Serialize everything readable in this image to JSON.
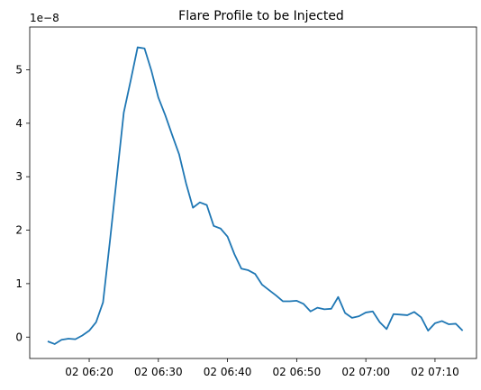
{
  "chart_data": {
    "type": "line",
    "title": "Flare Profile to be Injected",
    "xlabel": "",
    "ylabel": "",
    "y_offset_label": "1e−8",
    "x_start_time": "06:14",
    "x_step_minutes": 1,
    "xlim_minutes_after_06_00": [
      12.4,
      16.4
    ],
    "x_tick_labels": [
      "02 06:20",
      "02 06:30",
      "02 06:40",
      "02 06:50",
      "02 07:00",
      "02 07:10"
    ],
    "y_tick_labels": [
      "0",
      "1",
      "2",
      "3",
      "4",
      "5"
    ],
    "ylim": [
      -0.4,
      5.8
    ],
    "grid": false,
    "series": [
      {
        "color": "#1f77b4",
        "values": [
          -0.08,
          -0.13,
          -0.05,
          -0.03,
          -0.04,
          0.03,
          0.12,
          0.28,
          0.65,
          1.8,
          3.0,
          4.2,
          4.8,
          5.42,
          5.4,
          4.98,
          4.48,
          4.15,
          3.78,
          3.42,
          2.88,
          2.42,
          2.52,
          2.47,
          2.08,
          2.03,
          1.88,
          1.55,
          1.28,
          1.25,
          1.18,
          0.98,
          0.88,
          0.78,
          0.67,
          0.67,
          0.68,
          0.62,
          0.48,
          0.55,
          0.52,
          0.53,
          0.75,
          0.45,
          0.36,
          0.39,
          0.46,
          0.48,
          0.28,
          0.15,
          0.43,
          0.42,
          0.41,
          0.47,
          0.37,
          0.12,
          0.26,
          0.3,
          0.24,
          0.25,
          0.12
        ]
      }
    ]
  }
}
